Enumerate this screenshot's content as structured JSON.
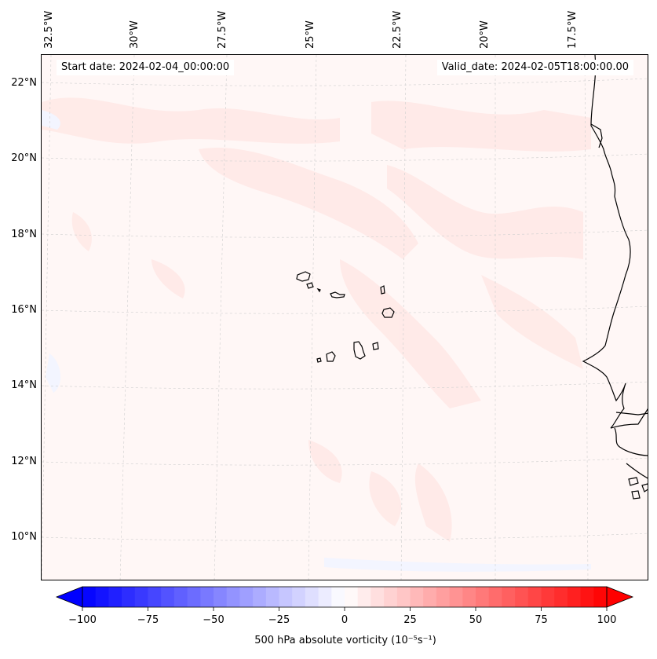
{
  "header": {
    "start_date": "Start date: 2024-02-04_00:00:00",
    "valid_date": "Valid_date: 2024-02-05T18:00:00.00"
  },
  "map": {
    "field": "500 hPa absolute vorticity",
    "lon_ticks": [
      "32.5°W",
      "30°W",
      "27.5°W",
      "25°W",
      "22.5°W",
      "20°W",
      "17.5°W"
    ],
    "lat_ticks": [
      "22°N",
      "20°N",
      "18°N",
      "16°N",
      "14°N",
      "12°N",
      "10°N"
    ],
    "gridlines": true,
    "coastline_color": "#000000",
    "background_color": "#fff7f6",
    "features": [
      "Cape Verde islands",
      "West African coast"
    ]
  },
  "colorbar": {
    "label": "500 hPa absolute vorticity (10⁻⁵s⁻¹)",
    "ticks": [
      "−100",
      "−75",
      "−50",
      "−25",
      "0",
      "25",
      "50",
      "75",
      "100"
    ],
    "min": -100,
    "max": 100,
    "levels": 40,
    "cmap": "bwr",
    "low_color": "#0000ff",
    "mid_color": "#ffffff",
    "high_color": "#ff0000",
    "extend": "both"
  }
}
